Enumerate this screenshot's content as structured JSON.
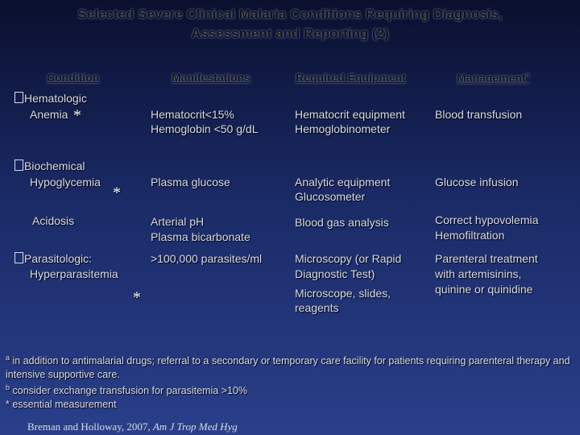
{
  "header": {
    "title": [
      "Selected Severe Clinical Malaria Conditions Requiring Diagnosis,",
      "Assessment and Reporting (2)"
    ]
  },
  "table": {
    "columns": [
      "Condition",
      "Manifestations",
      "Required Equipment",
      "Management"
    ],
    "management_sup": "a",
    "rows": [
      {
        "group": "Hematologic",
        "condition": "Anemia",
        "mark": "*",
        "manifestations": [
          "Hematocrit<15%",
          "Hemoglobin <50 g/dL"
        ],
        "equipment": [
          "Hematocrit equipment",
          "Hemoglobinometer"
        ],
        "management": [
          "Blood transfusion"
        ]
      },
      {
        "group": "Biochemical",
        "condition": "Hypoglycemia",
        "mark": "*",
        "manifestations": [
          "Plasma glucose"
        ],
        "equipment": [
          "Analytic equipment",
          "Glucosometer"
        ],
        "management": [
          "Glucose infusion"
        ]
      },
      {
        "condition": "Acidosis",
        "manifestations": [
          "Arterial pH",
          "Plasma bicarbonate"
        ],
        "equipment": [
          "Blood gas analysis"
        ],
        "management": [
          "Correct hypovolemia",
          "Hemofiltration"
        ]
      },
      {
        "group": "Parasitologic:",
        "condition": "Hyperparasitemia",
        "mark": "*",
        "manifestations": [
          ">100,000 parasites/ml"
        ],
        "equipment": [
          "Microscopy (or Rapid",
          "Diagnostic Test)",
          "Microscope, slides,",
          "reagents"
        ],
        "management": [
          "Parenteral treatment",
          "with artemisinins,",
          "quinine or quinidine"
        ]
      }
    ]
  },
  "footnotes": [
    {
      "sup": "a",
      "text": "in addition to antimalarial drugs; referral to a secondary or temporary care facility for patients requiring parenteral therapy and intensive supportive care."
    },
    {
      "sup": "b",
      "text": "consider exchange transfusion for parasitemia >10%"
    },
    {
      "text": "* essential measurement"
    }
  ],
  "citation": {
    "authors": "Breman and Holloway, 2007,",
    "journal": "Am J Trop Med Hyg"
  }
}
